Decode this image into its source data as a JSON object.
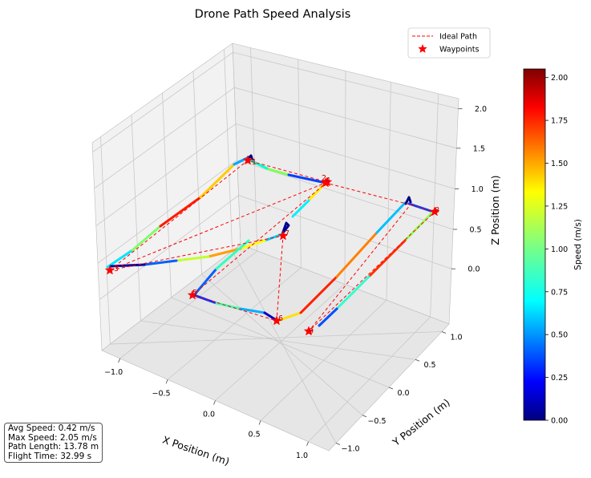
{
  "chart_data": {
    "type": "line3d",
    "title": "Drone Path Speed Analysis",
    "xlabel": "X Position (m)",
    "ylabel": "Y Position (m)",
    "zlabel": "Z Position (m)",
    "xticks": [
      "−1.0",
      "−0.5",
      "0.0",
      "0.5",
      "1.0"
    ],
    "yticks": [
      "−1.0",
      "−0.5",
      "0.0",
      "0.5",
      "1.0"
    ],
    "zticks": [
      "0.0",
      "0.5",
      "1.0",
      "1.5",
      "2.0"
    ],
    "legend": [
      {
        "label": "Ideal Path",
        "style": "dashed-line",
        "color": "#ff0000"
      },
      {
        "label": "Waypoints",
        "style": "star-marker",
        "color": "#ff0000"
      }
    ],
    "legend_position": "top-right",
    "colorbar": {
      "label": "Speed (m/s)",
      "colormap": "jet",
      "min": 0.0,
      "max": 2.05,
      "ticks": [
        "0.00",
        "0.25",
        "0.50",
        "0.75",
        "1.00",
        "1.25",
        "1.50",
        "1.75",
        "2.00"
      ]
    },
    "waypoint_labels": [
      "1",
      "2",
      "3",
      "4",
      "5",
      "6",
      "7",
      "8",
      "9"
    ]
  },
  "stats": {
    "avg_speed": "Avg Speed: 0.42 m/s",
    "max_speed": "Max Speed: 2.05 m/s",
    "path_length": "Path Length: 13.78 m",
    "flight_time": "Flight Time: 32.99 s"
  }
}
